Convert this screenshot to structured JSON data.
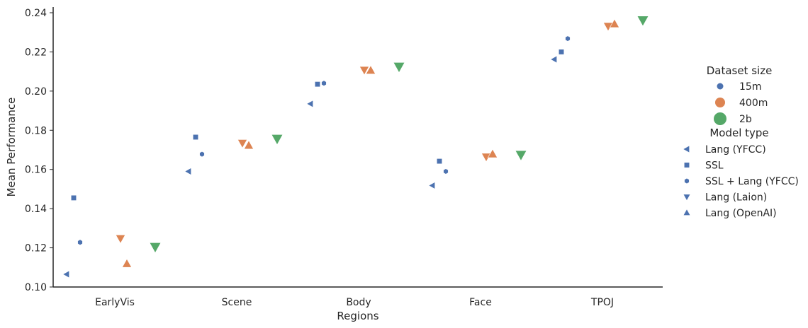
{
  "chart_data": {
    "type": "scatter",
    "xlabel": "Regions",
    "ylabel": "Mean Performance",
    "categories": [
      "EarlyVis",
      "Scene",
      "Body",
      "Face",
      "TPOJ"
    ],
    "ylim": [
      0.1,
      0.24
    ],
    "yticks": [
      "0.10",
      "0.12",
      "0.14",
      "0.16",
      "0.18",
      "0.20",
      "0.22",
      "0.24"
    ],
    "grid": false,
    "legend_position": "right",
    "colors": {
      "15m": "#4c72b0",
      "400m": "#dd8452",
      "2b": "#55a868"
    },
    "legend": {
      "size_title": "Dataset size",
      "sizes": [
        {
          "key": "15m",
          "label": "15m"
        },
        {
          "key": "400m",
          "label": "400m"
        },
        {
          "key": "2b",
          "label": "2b"
        }
      ],
      "type_title": "Model type",
      "types": [
        {
          "key": "lang_yfcc",
          "label": "Lang (YFCC)",
          "marker": "triangle-left"
        },
        {
          "key": "ssl",
          "label": "SSL",
          "marker": "square"
        },
        {
          "key": "ssl_lang_yfcc",
          "label": "SSL + Lang (YFCC)",
          "marker": "hexagon"
        },
        {
          "key": "lang_laion",
          "label": "Lang (Laion)",
          "marker": "triangle-down"
        },
        {
          "key": "lang_openai",
          "label": "Lang (OpenAI)",
          "marker": "triangle-up"
        }
      ]
    },
    "points": [
      {
        "region": "EarlyVis",
        "type": "lang_yfcc",
        "size": "15m",
        "y": 0.1065
      },
      {
        "region": "EarlyVis",
        "type": "ssl",
        "size": "15m",
        "y": 0.1455
      },
      {
        "region": "EarlyVis",
        "type": "ssl_lang_yfcc",
        "size": "15m",
        "y": 0.1228
      },
      {
        "region": "EarlyVis",
        "type": "lang_laion",
        "size": "400m",
        "y": 0.1248
      },
      {
        "region": "EarlyVis",
        "type": "lang_openai",
        "size": "400m",
        "y": 0.1118
      },
      {
        "region": "EarlyVis",
        "type": "lang_laion",
        "size": "2b",
        "y": 0.1205
      },
      {
        "region": "Scene",
        "type": "lang_yfcc",
        "size": "15m",
        "y": 0.159
      },
      {
        "region": "Scene",
        "type": "ssl",
        "size": "15m",
        "y": 0.1765
      },
      {
        "region": "Scene",
        "type": "ssl_lang_yfcc",
        "size": "15m",
        "y": 0.1678
      },
      {
        "region": "Scene",
        "type": "lang_laion",
        "size": "400m",
        "y": 0.1735
      },
      {
        "region": "Scene",
        "type": "lang_openai",
        "size": "400m",
        "y": 0.1722
      },
      {
        "region": "Scene",
        "type": "lang_laion",
        "size": "2b",
        "y": 0.1757
      },
      {
        "region": "Body",
        "type": "lang_yfcc",
        "size": "15m",
        "y": 0.1935
      },
      {
        "region": "Body",
        "type": "ssl",
        "size": "15m",
        "y": 0.2035
      },
      {
        "region": "Body",
        "type": "ssl_lang_yfcc",
        "size": "15m",
        "y": 0.204
      },
      {
        "region": "Body",
        "type": "lang_laion",
        "size": "400m",
        "y": 0.2108
      },
      {
        "region": "Body",
        "type": "lang_openai",
        "size": "400m",
        "y": 0.2105
      },
      {
        "region": "Body",
        "type": "lang_laion",
        "size": "2b",
        "y": 0.2125
      },
      {
        "region": "Face",
        "type": "lang_yfcc",
        "size": "15m",
        "y": 0.1518
      },
      {
        "region": "Face",
        "type": "ssl",
        "size": "15m",
        "y": 0.1642
      },
      {
        "region": "Face",
        "type": "ssl_lang_yfcc",
        "size": "15m",
        "y": 0.159
      },
      {
        "region": "Face",
        "type": "lang_laion",
        "size": "400m",
        "y": 0.1665
      },
      {
        "region": "Face",
        "type": "lang_openai",
        "size": "400m",
        "y": 0.1678
      },
      {
        "region": "Face",
        "type": "lang_laion",
        "size": "2b",
        "y": 0.1675
      },
      {
        "region": "TPOJ",
        "type": "lang_yfcc",
        "size": "15m",
        "y": 0.2162
      },
      {
        "region": "TPOJ",
        "type": "ssl",
        "size": "15m",
        "y": 0.22
      },
      {
        "region": "TPOJ",
        "type": "ssl_lang_yfcc",
        "size": "15m",
        "y": 0.2268
      },
      {
        "region": "TPOJ",
        "type": "lang_laion",
        "size": "400m",
        "y": 0.2332
      },
      {
        "region": "TPOJ",
        "type": "lang_openai",
        "size": "400m",
        "y": 0.2342
      },
      {
        "region": "TPOJ",
        "type": "lang_laion",
        "size": "2b",
        "y": 0.2362
      }
    ]
  }
}
